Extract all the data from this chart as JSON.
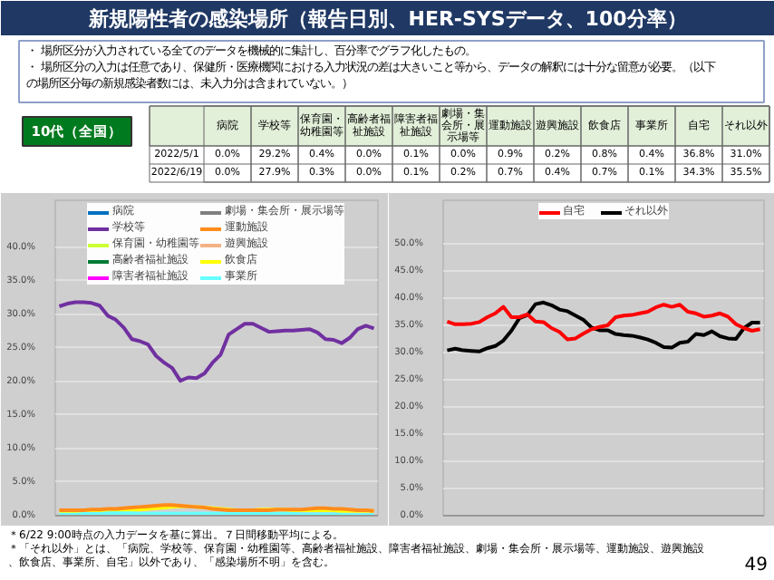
{
  "chart_data": [
    {
      "type": "other",
      "title": "新規陽性者の感染場所（報告日別、HER-SYSデータ、100分率）",
      "annotations": [
        "・ 場所区分が入力されている全てのデータを機械的に集計し、百分率でグラフ化したもの。",
        "・ 場所区分の入力は任意であり、保健所・医療機関における入力状況の差は大きいこと等から、データの解釈には十分な留意が必要。（以下の場所区分毎の新規感染者数には、未入力分は含まれていない。）",
        "10代（全国）"
      ]
    },
    {
      "type": "other",
      "categories": [
        "病院",
        "学校等",
        "保育園・幼稚園等",
        "高齢者福祉施設",
        "障害者福祉施設",
        "劇場・集会所・展示場等",
        "運動施設",
        "遊興施設",
        "飲食店",
        "事業所",
        "自宅",
        "それ以外"
      ],
      "series": [
        {
          "name": "2022/5/1",
          "values": [
            0.0,
            29.2,
            0.4,
            0.0,
            0.1,
            0.0,
            0.9,
            0.2,
            0.8,
            0.4,
            36.8,
            31.0
          ],
          "value_labels": [
            "0.0%",
            "29.2%",
            "0.4%",
            "0.0%",
            "0.1%",
            "0.0%",
            "0.9%",
            "0.2%",
            "0.8%",
            "0.4%",
            "36.8%",
            "31.0%"
          ]
        },
        {
          "name": "2022/6/19",
          "values": [
            0.0,
            27.9,
            0.3,
            0.0,
            0.1,
            0.2,
            0.7,
            0.4,
            0.7,
            0.1,
            34.3,
            35.5
          ],
          "value_labels": [
            "0.0%",
            "27.9%",
            "0.3%",
            "0.0%",
            "0.1%",
            "0.2%",
            "0.7%",
            "0.4%",
            "0.7%",
            "0.1%",
            "34.3%",
            "35.5%"
          ]
        }
      ]
    },
    {
      "type": "line",
      "categories": [
        null,
        null,
        null,
        null,
        null,
        null,
        null,
        null,
        null,
        null,
        null,
        null,
        null,
        null,
        null,
        null,
        null,
        null,
        null,
        null,
        null,
        null,
        null,
        null,
        null,
        null,
        null,
        null,
        null,
        null,
        null,
        null,
        null,
        null,
        null,
        null,
        null,
        null,
        null,
        null
      ],
      "ylim": [
        0,
        47
      ],
      "yticks": [
        {
          "value": 0,
          "label": "0.0%"
        },
        {
          "value": 5,
          "label": "5.0%"
        },
        {
          "value": 10,
          "label": "10.0%"
        },
        {
          "value": 15,
          "label": "15.0%"
        },
        {
          "value": 20,
          "label": "20.0%"
        },
        {
          "value": 25,
          "label": "25.0%"
        },
        {
          "value": 30,
          "label": "30.0%"
        },
        {
          "value": 35,
          "label": "35.0%"
        },
        {
          "value": 40,
          "label": "40.0%"
        }
      ],
      "grid": "y",
      "legend": "top",
      "series": [
        {
          "name": "病院",
          "color": "#0070c0",
          "values": [
            null,
            null,
            null,
            null,
            null,
            null,
            null,
            null,
            null,
            null,
            null,
            null,
            null,
            null,
            null,
            null,
            null,
            null,
            null,
            null,
            null,
            null,
            null,
            null,
            null,
            null,
            null,
            null,
            null,
            null,
            null,
            null,
            null,
            null,
            null,
            null,
            null,
            null,
            null,
            null
          ]
        },
        {
          "name": "学校等",
          "color": "#7030a0",
          "values": [
            31.2,
            31.6,
            31.8,
            31.8,
            31.7,
            31.3,
            29.8,
            29.2,
            28.0,
            26.3,
            26.0,
            25.5,
            23.8,
            22.8,
            22.0,
            20.1,
            20.6,
            20.5,
            21.2,
            22.8,
            24.0,
            27.0,
            27.8,
            28.6,
            28.6,
            28.0,
            27.4,
            27.5,
            27.6,
            27.6,
            27.7,
            27.8,
            27.3,
            26.3,
            26.2,
            25.7,
            26.5,
            27.8,
            28.3,
            27.9
          ]
        },
        {
          "name": "保育園・幼稚園等",
          "color": "#ccff33",
          "values": [
            null,
            null,
            null,
            null,
            null,
            null,
            null,
            null,
            null,
            null,
            null,
            null,
            null,
            null,
            null,
            null,
            null,
            null,
            null,
            null,
            null,
            null,
            null,
            null,
            null,
            null,
            null,
            null,
            null,
            null,
            null,
            null,
            null,
            null,
            null,
            null,
            null,
            null,
            null,
            null
          ]
        },
        {
          "name": "高齢者福祉施設",
          "color": "#007a33",
          "values": [
            null,
            null,
            null,
            null,
            null,
            null,
            null,
            null,
            null,
            null,
            null,
            null,
            null,
            null,
            null,
            null,
            null,
            null,
            null,
            null,
            null,
            null,
            null,
            null,
            null,
            null,
            null,
            null,
            null,
            null,
            null,
            null,
            null,
            null,
            null,
            null,
            null,
            null,
            null,
            null
          ]
        },
        {
          "name": "障害者福祉施設",
          "color": "#ff00ff",
          "values": [
            null,
            null,
            null,
            null,
            null,
            null,
            null,
            null,
            null,
            null,
            null,
            null,
            null,
            null,
            null,
            null,
            null,
            null,
            null,
            null,
            null,
            null,
            null,
            null,
            null,
            null,
            null,
            null,
            null,
            null,
            null,
            null,
            null,
            null,
            null,
            null,
            null,
            null,
            null,
            null
          ]
        },
        {
          "name": "劇場・集会所・展示場等",
          "color": "#7f7f7f",
          "values": [
            null,
            null,
            null,
            null,
            null,
            null,
            null,
            null,
            null,
            null,
            null,
            null,
            null,
            null,
            null,
            null,
            null,
            null,
            null,
            null,
            null,
            null,
            null,
            null,
            null,
            null,
            null,
            null,
            null,
            null,
            null,
            null,
            null,
            null,
            null,
            null,
            null,
            null,
            null,
            null
          ]
        },
        {
          "name": "運動施設",
          "color": "#ff8c1a",
          "values": [
            0.8,
            0.8,
            0.8,
            0.8,
            0.9,
            0.9,
            1.0,
            1.0,
            1.1,
            1.2,
            1.3,
            1.4,
            1.5,
            1.6,
            1.6,
            1.5,
            1.4,
            1.3,
            1.2,
            1.0,
            0.9,
            0.8,
            0.8,
            0.8,
            0.8,
            0.8,
            0.8,
            0.9,
            0.9,
            0.9,
            0.9,
            1.0,
            1.1,
            1.1,
            1.0,
            1.0,
            0.9,
            0.8,
            0.8,
            0.7
          ]
        },
        {
          "name": "遊興施設",
          "color": "#f4b183",
          "values": [
            null,
            null,
            null,
            null,
            null,
            null,
            null,
            null,
            null,
            null,
            null,
            null,
            null,
            null,
            null,
            null,
            null,
            null,
            null,
            null,
            null,
            null,
            null,
            null,
            null,
            null,
            null,
            null,
            null,
            null,
            null,
            null,
            null,
            null,
            null,
            null,
            null,
            null,
            null,
            null
          ]
        },
        {
          "name": "飲食店",
          "color": "#ffff00",
          "values": [
            0.7,
            0.7,
            0.7,
            0.8,
            0.8,
            0.8,
            0.9,
            0.9,
            0.9,
            0.9,
            0.9,
            1.0,
            1.1,
            1.2,
            1.3,
            1.4,
            1.4,
            1.3,
            1.2,
            1.1,
            1.0,
            0.9,
            0.8,
            0.8,
            0.8,
            0.9,
            0.9,
            0.9,
            0.9,
            0.8,
            0.8,
            0.8,
            0.8,
            0.8,
            0.8,
            0.7,
            0.7,
            0.7,
            0.7,
            0.7
          ]
        },
        {
          "name": "事業所",
          "color": "#66ffff",
          "values": [
            0.4,
            0.4,
            0.4,
            0.4,
            0.4,
            0.4,
            0.4,
            0.4,
            0.4,
            0.4,
            0.3,
            0.3,
            0.3,
            0.3,
            0.3,
            0.3,
            0.3,
            0.3,
            0.3,
            0.3,
            0.3,
            0.3,
            0.3,
            0.3,
            0.3,
            0.3,
            0.3,
            0.3,
            0.3,
            0.3,
            0.2,
            0.2,
            0.2,
            0.2,
            0.2,
            0.2,
            0.1,
            0.1,
            0.1,
            0.1
          ]
        }
      ]
    },
    {
      "type": "line",
      "categories": [
        null,
        null,
        null,
        null,
        null,
        null,
        null,
        null,
        null,
        null,
        null,
        null,
        null,
        null,
        null,
        null,
        null,
        null,
        null,
        null,
        null,
        null,
        null,
        null,
        null,
        null,
        null,
        null,
        null,
        null,
        null,
        null,
        null,
        null,
        null,
        null,
        null,
        null,
        null,
        null
      ],
      "ylim": [
        0,
        58
      ],
      "yticks": [
        {
          "value": 0,
          "label": "0.0%"
        },
        {
          "value": 5,
          "label": "5.0%"
        },
        {
          "value": 10,
          "label": "10.0%"
        },
        {
          "value": 15,
          "label": "15.0%"
        },
        {
          "value": 20,
          "label": "20.0%"
        },
        {
          "value": 25,
          "label": "25.0%"
        },
        {
          "value": 30,
          "label": "30.0%"
        },
        {
          "value": 35,
          "label": "35.0%"
        },
        {
          "value": 40,
          "label": "40.0%"
        },
        {
          "value": 45,
          "label": "45.0%"
        },
        {
          "value": 50,
          "label": "50.0%"
        }
      ],
      "grid": "y",
      "legend": "top",
      "series": [
        {
          "name": "自宅",
          "color": "#ff0000",
          "values": [
            35.7,
            35.2,
            35.2,
            35.3,
            35.6,
            36.5,
            37.2,
            38.4,
            36.5,
            36.5,
            37.0,
            35.7,
            35.6,
            34.5,
            33.8,
            32.4,
            32.6,
            33.5,
            34.3,
            34.7,
            35.0,
            36.5,
            36.8,
            36.9,
            37.2,
            37.5,
            38.3,
            38.8,
            38.4,
            38.8,
            37.5,
            37.2,
            36.6,
            36.8,
            37.2,
            36.6,
            35.2,
            34.5,
            34.0,
            34.3
          ]
        },
        {
          "name": "それ以外",
          "color": "#000000",
          "values": [
            30.4,
            30.7,
            30.4,
            30.3,
            30.2,
            30.8,
            31.2,
            32.2,
            34.0,
            36.3,
            36.9,
            38.9,
            39.2,
            38.7,
            37.9,
            37.6,
            36.8,
            36.0,
            34.6,
            34.1,
            34.1,
            33.4,
            33.2,
            33.1,
            32.8,
            32.4,
            31.8,
            31.0,
            30.9,
            31.8,
            32.0,
            33.4,
            33.2,
            33.9,
            33.0,
            32.6,
            32.5,
            34.5,
            35.5,
            35.5
          ]
        }
      ]
    },
    {
      "type": "other",
      "annotations": [
        "＊6/22 9:00時点の入力データを基に算出。７日間移動平均による。",
        "＊「それ以外」とは、「病院、学校等、保育園・幼稚園等、高齢者福祉施設、障害者福祉施設、劇場・集会所・展示場等、運動施設、遊興施設、飲食店、事業所、自宅」以外であり、「感染場所不明」を含む。",
        "49"
      ]
    }
  ]
}
